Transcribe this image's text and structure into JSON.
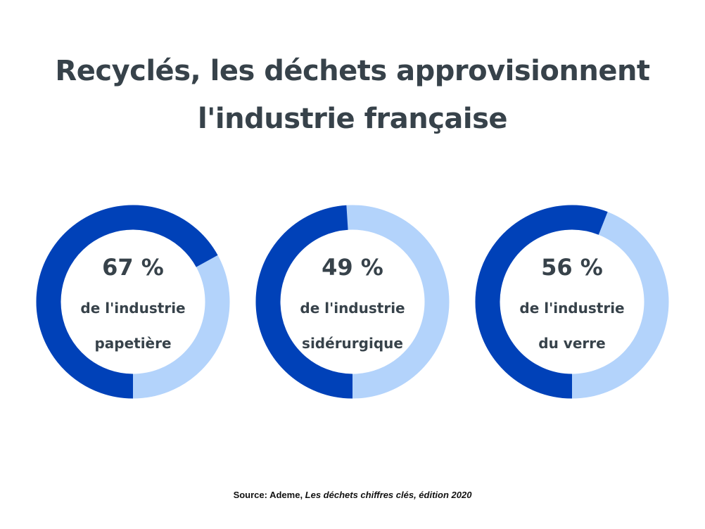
{
  "chart_data": {
    "type": "pie",
    "title_lines": [
      "Recyclés, les déchets approvisionnent",
      "l'industrie française"
    ],
    "charts": [
      {
        "value": 67,
        "label": "67 %",
        "line1": "de l'industrie",
        "line2": "papetière"
      },
      {
        "value": 49,
        "label": "49 %",
        "line1": "de l'industrie",
        "line2": "sidérurgique"
      },
      {
        "value": 56,
        "label": "56 %",
        "line1": "de l'industrie",
        "line2": "du verre"
      }
    ],
    "colors": {
      "value": "#0041b8",
      "remainder": "#b3d3fb",
      "text": "#37424a"
    },
    "source": {
      "prefix": "Source: Ademe, ",
      "title": "Les déchets chiffres clés, édition 2020"
    }
  }
}
